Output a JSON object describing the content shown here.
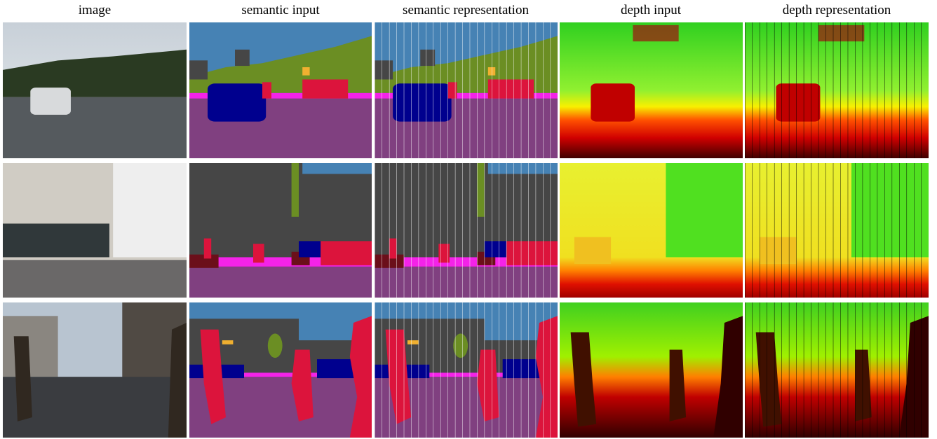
{
  "columns": [
    "image",
    "semantic input",
    "semantic representation",
    "depth input",
    "depth representation"
  ]
}
